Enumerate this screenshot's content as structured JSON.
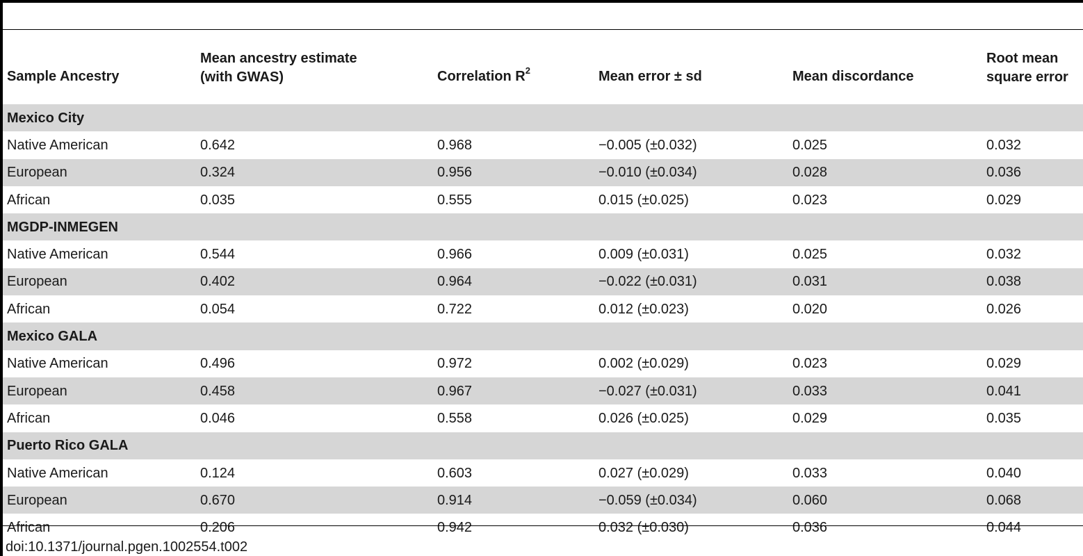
{
  "table": {
    "headers": {
      "sample_ancestry": "Sample Ancestry",
      "mean_estimate_line1": "Mean ancestry estimate",
      "mean_estimate_line2": "(with GWAS)",
      "correlation": "Correlation R",
      "correlation_sup": "2",
      "mean_error": "Mean error ± sd",
      "mean_discordance": "Mean discordance",
      "rmse_line1": "Root mean",
      "rmse_line2": "square error"
    },
    "groups": [
      {
        "name": "Mexico City",
        "rows": [
          {
            "ancestry": "Native American",
            "estimate": "0.642",
            "r2": "0.968",
            "error": "−0.005 (±0.032)",
            "discordance": "0.025",
            "rmse": "0.032"
          },
          {
            "ancestry": "European",
            "estimate": "0.324",
            "r2": "0.956",
            "error": "−0.010 (±0.034)",
            "discordance": "0.028",
            "rmse": "0.036"
          },
          {
            "ancestry": "African",
            "estimate": "0.035",
            "r2": "0.555",
            "error": "0.015 (±0.025)",
            "discordance": "0.023",
            "rmse": "0.029"
          }
        ]
      },
      {
        "name": "MGDP-INMEGEN",
        "rows": [
          {
            "ancestry": "Native American",
            "estimate": "0.544",
            "r2": "0.966",
            "error": "0.009 (±0.031)",
            "discordance": "0.025",
            "rmse": "0.032"
          },
          {
            "ancestry": "European",
            "estimate": "0.402",
            "r2": "0.964",
            "error": "−0.022 (±0.031)",
            "discordance": "0.031",
            "rmse": "0.038"
          },
          {
            "ancestry": "African",
            "estimate": "0.054",
            "r2": "0.722",
            "error": "0.012 (±0.023)",
            "discordance": "0.020",
            "rmse": "0.026"
          }
        ]
      },
      {
        "name": "Mexico GALA",
        "rows": [
          {
            "ancestry": "Native American",
            "estimate": "0.496",
            "r2": "0.972",
            "error": "0.002 (±0.029)",
            "discordance": "0.023",
            "rmse": "0.029"
          },
          {
            "ancestry": "European",
            "estimate": "0.458",
            "r2": "0.967",
            "error": "−0.027 (±0.031)",
            "discordance": "0.033",
            "rmse": "0.041"
          },
          {
            "ancestry": "African",
            "estimate": "0.046",
            "r2": "0.558",
            "error": "0.026 (±0.025)",
            "discordance": "0.029",
            "rmse": "0.035"
          }
        ]
      },
      {
        "name": "Puerto Rico GALA",
        "rows": [
          {
            "ancestry": "Native American",
            "estimate": "0.124",
            "r2": "0.603",
            "error": "0.027 (±0.029)",
            "discordance": "0.033",
            "rmse": "0.040"
          },
          {
            "ancestry": "European",
            "estimate": "0.670",
            "r2": "0.914",
            "error": "−0.059 (±0.034)",
            "discordance": "0.060",
            "rmse": "0.068"
          },
          {
            "ancestry": "African",
            "estimate": "0.206",
            "r2": "0.942",
            "error": "0.032 (±0.030)",
            "discordance": "0.036",
            "rmse": "0.044"
          }
        ]
      }
    ]
  },
  "doi": "doi:10.1371/journal.pgen.1002554.t002",
  "colors": {
    "shade": "#d6d6d6",
    "rule": "#000000",
    "text": "#1a1a1a"
  }
}
